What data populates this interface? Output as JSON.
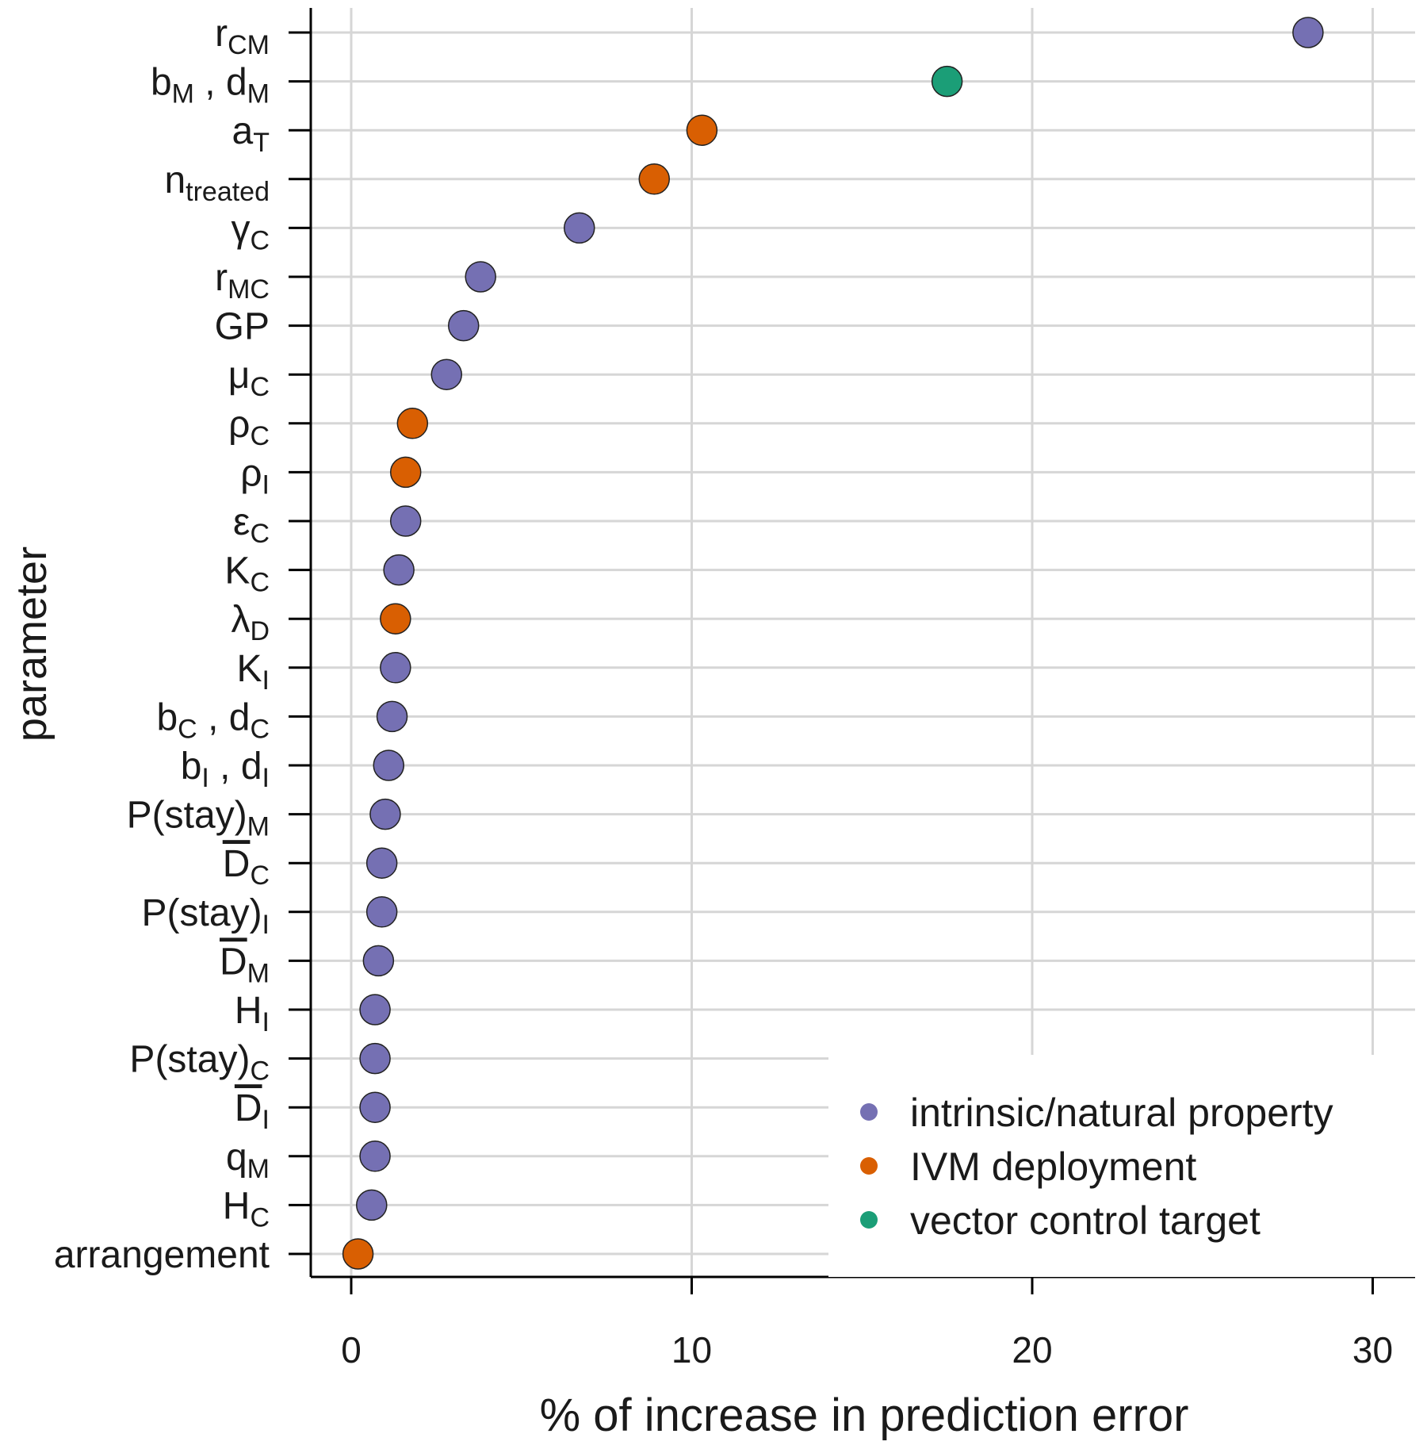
{
  "chart_data": {
    "type": "scatter",
    "xlabel": "% of increase in prediction error",
    "ylabel": "parameter",
    "xlim": [
      -1.2,
      31.2
    ],
    "xticks": [
      0,
      10,
      20,
      30
    ],
    "grid": true,
    "legend_placement": "bottom-right",
    "categories_top_to_bottom": [
      {
        "base": "r",
        "sub": "CM",
        "value": 28.1,
        "group": "intrinsic/natural property"
      },
      {
        "base": "b",
        "sub": "M",
        "base2": ", d",
        "sub2": "M",
        "value": 17.5,
        "group": "vector control target"
      },
      {
        "base": "a",
        "sub": "T",
        "value": 10.3,
        "group": "IVM deployment"
      },
      {
        "base": "n",
        "sub": "treated",
        "value": 8.9,
        "group": "IVM deployment"
      },
      {
        "base": "γ",
        "sub": "C",
        "value": 6.7,
        "group": "intrinsic/natural property"
      },
      {
        "base": "r",
        "sub": "MC",
        "value": 3.8,
        "group": "intrinsic/natural property"
      },
      {
        "base": "GP",
        "value": 3.3,
        "group": "intrinsic/natural property"
      },
      {
        "base": "μ",
        "sub": "C",
        "value": 2.8,
        "group": "intrinsic/natural property"
      },
      {
        "base": "ρ",
        "sub": "C",
        "value": 1.8,
        "group": "IVM deployment"
      },
      {
        "base": "ρ",
        "sub": "I",
        "value": 1.6,
        "group": "IVM deployment"
      },
      {
        "base": "ε",
        "sub": "C",
        "value": 1.6,
        "group": "intrinsic/natural property"
      },
      {
        "base": "K",
        "sub": "C",
        "value": 1.4,
        "group": "intrinsic/natural property"
      },
      {
        "base": "λ",
        "sub": "D",
        "value": 1.3,
        "group": "IVM deployment"
      },
      {
        "base": "K",
        "sub": "I",
        "value": 1.3,
        "group": "intrinsic/natural property"
      },
      {
        "base": "b",
        "sub": "C",
        "base2": ", d",
        "sub2": "C",
        "value": 1.2,
        "group": "intrinsic/natural property"
      },
      {
        "base": "b",
        "sub": "I",
        "base2": ", d",
        "sub2": "I",
        "value": 1.1,
        "group": "intrinsic/natural property"
      },
      {
        "base": "P(stay)",
        "sub": "M",
        "value": 1.0,
        "group": "intrinsic/natural property"
      },
      {
        "base": "D",
        "overline": true,
        "sub": "C",
        "value": 0.9,
        "group": "intrinsic/natural property"
      },
      {
        "base": "P(stay)",
        "sub": "I",
        "value": 0.9,
        "group": "intrinsic/natural property"
      },
      {
        "base": "D",
        "overline": true,
        "sub": "M",
        "value": 0.8,
        "group": "intrinsic/natural property"
      },
      {
        "base": "H",
        "sub": "I",
        "value": 0.7,
        "group": "intrinsic/natural property"
      },
      {
        "base": "P(stay)",
        "sub": "C",
        "value": 0.7,
        "group": "intrinsic/natural property"
      },
      {
        "base": "D",
        "overline": true,
        "sub": "I",
        "value": 0.7,
        "group": "intrinsic/natural property"
      },
      {
        "base": "q",
        "sub": "M",
        "value": 0.7,
        "group": "intrinsic/natural property"
      },
      {
        "base": "H",
        "sub": "C",
        "value": 0.6,
        "group": "intrinsic/natural property"
      },
      {
        "base": "arrangement",
        "value": 0.2,
        "group": "IVM deployment"
      }
    ],
    "series": [
      {
        "name": "intrinsic/natural property",
        "color": "#7570b3"
      },
      {
        "name": "IVM deployment",
        "color": "#d95f02"
      },
      {
        "name": "vector control target",
        "color": "#1b9e77"
      }
    ]
  }
}
